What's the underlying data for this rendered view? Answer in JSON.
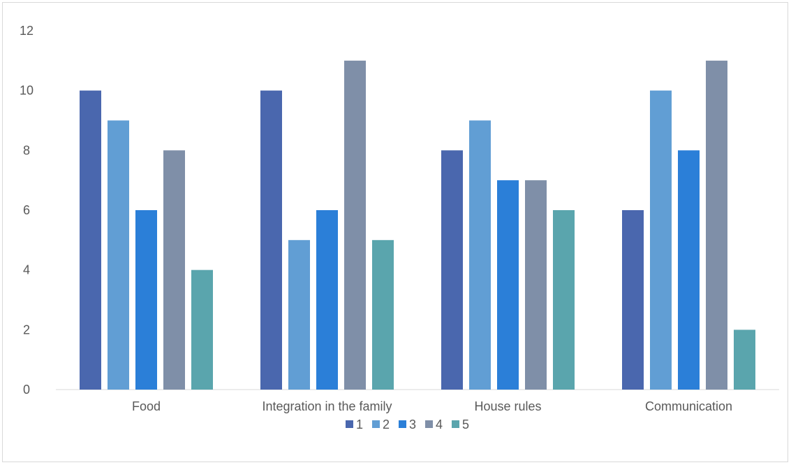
{
  "chart_data": {
    "type": "bar",
    "categories": [
      "Food",
      "Integration in the family",
      "House rules",
      "Communication"
    ],
    "series": [
      {
        "name": "1",
        "values": [
          10,
          10,
          8,
          6
        ],
        "color": "#4a67ae"
      },
      {
        "name": "2",
        "values": [
          9,
          5,
          9,
          10
        ],
        "color": "#619ed4"
      },
      {
        "name": "3",
        "values": [
          6,
          6,
          7,
          8
        ],
        "color": "#2b7fd8"
      },
      {
        "name": "4",
        "values": [
          8,
          11,
          7,
          11
        ],
        "color": "#7f8fa8"
      },
      {
        "name": "5",
        "values": [
          4,
          5,
          6,
          2
        ],
        "color": "#5aa5ad"
      }
    ],
    "yticks": [
      "0",
      "2",
      "4",
      "6",
      "8",
      "10",
      "12"
    ],
    "ylim": [
      0,
      12
    ],
    "grid": false,
    "legend": "bottom-center"
  }
}
